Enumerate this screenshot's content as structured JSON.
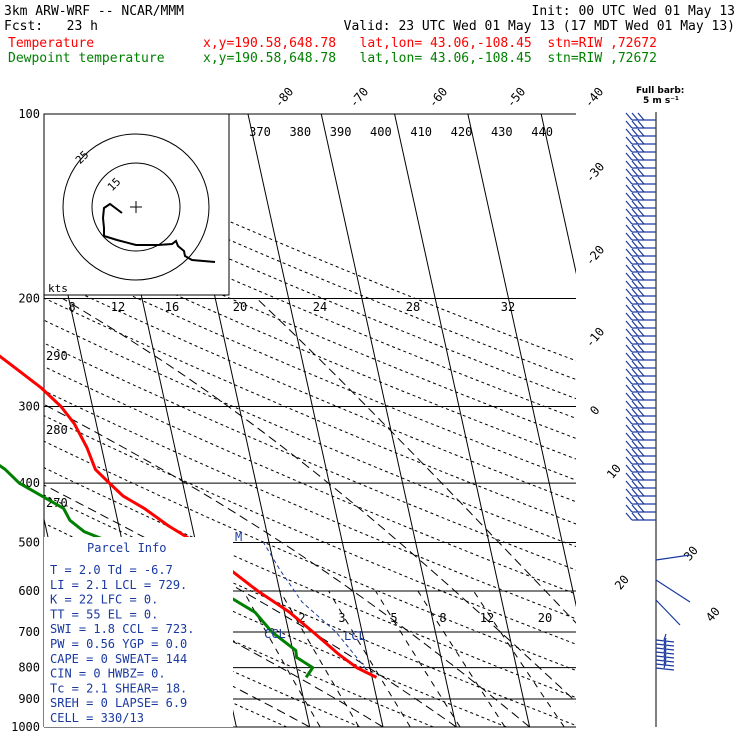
{
  "header": {
    "model": "3km ARW-WRF -- NCAR/MMM",
    "init": "Init: 00 UTC Wed 01 May 13",
    "fcst": "Fcst:   23 h",
    "valid": "Valid: 23 UTC Wed 01 May 13 (17 MDT Wed 01 May 13)",
    "temp_label": "Temperature",
    "temp_info": "x,y=190.58,648.78   lat,lon= 43.06,-108.45  stn=RIW ,72672",
    "dew_label": "Dewpoint temperature",
    "dew_info": "x,y=190.58,648.78   lat,lon= 43.06,-108.45  stn=RIW ,72672"
  },
  "colors": {
    "temperature": "#ff0000",
    "dewpoint": "#008000",
    "parcel_info": "#1a3aa0",
    "axes": "#000000"
  },
  "barb_legend": {
    "line1": "Full barb:",
    "line2": "5 m s⁻¹"
  },
  "chart_data": {
    "type": "line",
    "yscale": "log",
    "ylim": [
      1000,
      100
    ],
    "pressure_ticks": [
      100,
      200,
      300,
      400,
      500,
      600,
      700,
      800,
      900,
      1000
    ],
    "skew_temp_labels": [
      "-80",
      "-70",
      "-60",
      "-50",
      "-40",
      "-30",
      "-20",
      "-10",
      "0",
      "10",
      "20",
      "30",
      "40"
    ],
    "theta_labels": [
      "370",
      "380",
      "390",
      "400",
      "410",
      "420",
      "430",
      "440"
    ],
    "hodo_labels": [
      "8",
      "12",
      "16",
      "20",
      "24",
      "28",
      "32"
    ],
    "mixing_ratio_labels": [
      "2",
      "3",
      "5",
      "8",
      "12",
      "20"
    ],
    "dry_adiabat_labels": [
      "290",
      "280",
      "270"
    ],
    "hodograph": {
      "units": "kts",
      "ring_labels": [
        "25",
        "15"
      ]
    },
    "series": [
      {
        "name": "Temperature",
        "p": [
          830,
          800,
          760,
          700,
          650,
          600,
          550,
          500,
          470,
          440,
          420,
          400,
          380,
          350,
          320,
          300,
          280,
          260,
          240,
          220,
          200,
          180,
          160,
          140,
          120,
          108
        ],
        "t": [
          0.6,
          -1.8,
          -3.9,
          -6.7,
          -9.3,
          -13.0,
          -16.4,
          -20.0,
          -23.2,
          -26.0,
          -28.5,
          -30.0,
          -31.5,
          -32.0,
          -33.0,
          -34.3,
          -36.4,
          -39.3,
          -42.5,
          -46.1,
          -50.1,
          -53.6,
          -58.6,
          -62.6,
          -67.2,
          -71.9
        ]
      },
      {
        "name": "Dewpoint temperature",
        "p": [
          830,
          800,
          770,
          750,
          700,
          650,
          600,
          560,
          520,
          480,
          460,
          440,
          400,
          380,
          350,
          330,
          310,
          290,
          270,
          250,
          220,
          200,
          180,
          160,
          140,
          120,
          105
        ],
        "t": [
          -9.0,
          -7.8,
          -9.7,
          -9.6,
          -12.3,
          -14.0,
          -18.2,
          -22.5,
          -28.2,
          -34.9,
          -36.5,
          -37.0,
          -42.3,
          -43.8,
          -47.5,
          -51.6,
          -56.9,
          -60.8,
          -61.1,
          -60.3,
          -60.9,
          -63.0,
          -65.2,
          -70.4,
          -72.3,
          -75.5,
          -83.1
        ]
      }
    ]
  },
  "labels": {
    "lcl": "LCL",
    "ccl": "CCL",
    "m_marker": "M"
  },
  "parcel_info": {
    "title": "Parcel Info",
    "rows": [
      "T  =    2.0  Td = -6.7",
      "LI =    2.1  LCL = 729.",
      "K  =     22  LFC =   0.",
      "TT =     55  EL  =   0.",
      "SWI =   1.8  CCL = 723.",
      "PW =   0.56  YGP = 0.0",
      "CAPE =    0  SWEAT= 144",
      "CIN =     0  HWBZ=   0.",
      "Tc =    2.1  SHEAR= 18.",
      "SREH =    0  LAPSE= 6.9",
      "CELL = 330/13"
    ]
  }
}
